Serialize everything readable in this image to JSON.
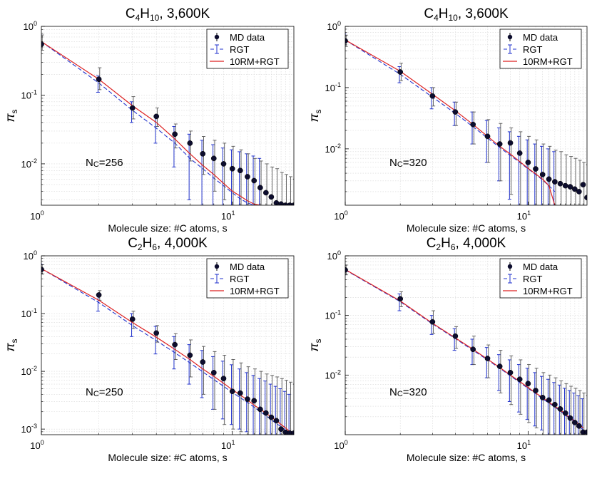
{
  "figure": {
    "xlabel": "Molecule size: #C atoms, s",
    "ylabel": "π",
    "ylabel_sub": "s",
    "legend": [
      "MD data",
      "RGT",
      "10RM+RGT"
    ],
    "colors": {
      "md": "#000000",
      "md_fill": "#0d0d2e",
      "rgt": "#2233cc",
      "rm": "#dd2222"
    }
  },
  "chart_data": [
    {
      "type": "scatter",
      "title": "C4H10, 3,600K",
      "title_parts": {
        "a": "C",
        "b": "4",
        "c": "H",
        "d": "10",
        "e": ", 3,600K"
      },
      "annotation": {
        "a": "N",
        "b": "C",
        "c": "=256"
      },
      "xlabel": "Molecule size: #C atoms, s",
      "xscale": "log",
      "yscale": "log",
      "xlim": [
        1,
        21
      ],
      "ylim": [
        0.0025,
        1
      ],
      "xticks": [
        {
          "v": 1,
          "b": "10",
          "e": "0"
        },
        {
          "v": 10,
          "b": "10",
          "e": "1"
        }
      ],
      "yticks": [
        {
          "v": 1,
          "b": "10",
          "e": "0"
        },
        {
          "v": 0.1,
          "b": "10",
          "e": "-1"
        },
        {
          "v": 0.01,
          "b": "10",
          "e": "-2"
        }
      ],
      "grid": true,
      "legend_position": "top-right",
      "series": [
        {
          "name": "MD data",
          "x": [
            1,
            2,
            3,
            4,
            5,
            6,
            7,
            8,
            9,
            10,
            11,
            12,
            13,
            14,
            15,
            16,
            17,
            18,
            19,
            20,
            21
          ],
          "y": [
            0.55,
            0.17,
            0.065,
            0.049,
            0.027,
            0.02,
            0.014,
            0.012,
            0.01,
            0.0085,
            0.008,
            0.0065,
            0.0057,
            0.0045,
            0.0038,
            0.0033,
            0.0027,
            0.0026,
            0.0025,
            0.0025,
            0.0025
          ],
          "yerr_upper": [
            0.75,
            0.25,
            0.095,
            0.065,
            0.038,
            0.03,
            0.025,
            0.022,
            0.02,
            0.018,
            0.016,
            0.014,
            0.012,
            0.011,
            0.01,
            0.009,
            0.0085,
            0.0075,
            0.007,
            0.0065,
            0.006
          ],
          "yerr_lower": [
            0.45,
            0.12,
            0.045,
            0.035,
            0.017,
            0.011,
            0.007,
            0.004,
            0.003,
            0.0025,
            0.0025,
            0.0025,
            0.0025,
            0.0025,
            0.0025,
            0.0025,
            0.0025,
            0.0025,
            0.0025,
            0.0025,
            0.0025
          ]
        },
        {
          "name": "RGT",
          "x": [
            1,
            2,
            3,
            4,
            5,
            6,
            7,
            8,
            9,
            10,
            11,
            12,
            13,
            14
          ],
          "y": [
            0.6,
            0.15,
            0.06,
            0.033,
            0.02,
            0.012,
            0.0085,
            0.0062,
            0.0048,
            0.0038,
            0.0031,
            0.0027,
            0.0025,
            0.0025
          ],
          "yerr_upper": [
            0.75,
            0.19,
            0.08,
            0.05,
            0.035,
            0.027,
            0.022,
            0.019,
            0.017,
            0.016,
            0.015,
            0.014,
            0.013,
            0.012
          ],
          "yerr_lower": [
            0.5,
            0.11,
            0.04,
            0.02,
            0.009,
            0.003,
            0.0025,
            0.0025,
            0.0025,
            0.0025,
            0.0025,
            0.0025,
            0.0025,
            0.0025
          ]
        },
        {
          "name": "10RM+RGT",
          "x": [
            1,
            2,
            3,
            4,
            5,
            6,
            7,
            8,
            9,
            10,
            11,
            12,
            13,
            14
          ],
          "y": [
            0.6,
            0.17,
            0.07,
            0.04,
            0.023,
            0.014,
            0.0095,
            0.007,
            0.0052,
            0.004,
            0.0034,
            0.0029,
            0.0026,
            0.0025
          ]
        }
      ]
    },
    {
      "type": "scatter",
      "title": "C4H10, 3,600K",
      "title_parts": {
        "a": "C",
        "b": "4",
        "c": "H",
        "d": "10",
        "e": ", 3,600K"
      },
      "annotation": {
        "a": "N",
        "b": "C",
        "c": "=320"
      },
      "xlabel": "Molecule size: #C atoms, s",
      "xscale": "log",
      "yscale": "log",
      "xlim": [
        1,
        21
      ],
      "ylim": [
        0.0012,
        1
      ],
      "xticks": [
        {
          "v": 1,
          "b": "10",
          "e": "0"
        },
        {
          "v": 10,
          "b": "10",
          "e": "1"
        }
      ],
      "yticks": [
        {
          "v": 1,
          "b": "10",
          "e": "0"
        },
        {
          "v": 0.1,
          "b": "10",
          "e": "-1"
        },
        {
          "v": 0.01,
          "b": "10",
          "e": "-2"
        }
      ],
      "grid": true,
      "legend_position": "top-right",
      "series": [
        {
          "name": "MD data",
          "x": [
            1,
            2,
            3,
            4,
            5,
            6,
            7,
            8,
            9,
            10,
            11,
            12,
            13,
            14,
            15,
            16,
            17,
            18,
            19,
            20,
            21
          ],
          "y": [
            0.58,
            0.18,
            0.073,
            0.04,
            0.025,
            0.016,
            0.012,
            0.0125,
            0.0085,
            0.006,
            0.0047,
            0.0038,
            0.0032,
            0.0029,
            0.0027,
            0.0025,
            0.0024,
            0.0022,
            0.002,
            0.0026,
            0.0016
          ],
          "yerr_upper": [
            0.72,
            0.25,
            0.1,
            0.058,
            0.04,
            0.03,
            0.026,
            0.022,
            0.019,
            0.016,
            0.014,
            0.012,
            0.011,
            0.0095,
            0.009,
            0.008,
            0.0075,
            0.007,
            0.0065,
            0.006,
            0.0055
          ],
          "yerr_lower": [
            0.47,
            0.13,
            0.05,
            0.024,
            0.012,
            0.006,
            0.003,
            0.0018,
            0.0012,
            0.0012,
            0.0012,
            0.0012,
            0.0012,
            0.0012,
            0.0012,
            0.0012,
            0.0012,
            0.0012,
            0.0012,
            0.0012,
            0.0012
          ]
        },
        {
          "name": "RGT",
          "x": [
            1,
            2,
            3,
            4,
            5,
            6,
            7,
            8,
            9,
            10,
            11,
            12,
            13,
            14
          ],
          "y": [
            0.6,
            0.165,
            0.07,
            0.038,
            0.023,
            0.015,
            0.0105,
            0.0078,
            0.006,
            0.0047,
            0.0038,
            0.0031,
            0.0025,
            0.002
          ],
          "yerr_upper": [
            0.75,
            0.22,
            0.1,
            0.058,
            0.04,
            0.029,
            0.022,
            0.019,
            0.016,
            0.014,
            0.012,
            0.011,
            0.01,
            0.009
          ],
          "yerr_lower": [
            0.5,
            0.12,
            0.045,
            0.024,
            0.012,
            0.006,
            0.003,
            0.0015,
            0.0012,
            0.0012,
            0.0012,
            0.0012,
            0.0012,
            0.0012
          ]
        },
        {
          "name": "10RM+RGT",
          "x": [
            1,
            2,
            3,
            4,
            5,
            6,
            7,
            8,
            9,
            10,
            11,
            12,
            13,
            14
          ],
          "y": [
            0.6,
            0.185,
            0.078,
            0.042,
            0.025,
            0.016,
            0.011,
            0.0082,
            0.0062,
            0.0048,
            0.0039,
            0.0032,
            0.0025,
            0.0012
          ]
        }
      ]
    },
    {
      "type": "scatter",
      "title": "C2H6, 4,000K",
      "title_parts": {
        "a": "C",
        "b": "2",
        "c": "H",
        "d": "6",
        "e": ", 4,000K"
      },
      "annotation": {
        "a": "N",
        "b": "C",
        "c": "=250"
      },
      "xlabel": "Molecule size: #C atoms, s",
      "xscale": "log",
      "yscale": "log",
      "xlim": [
        1,
        21
      ],
      "ylim": [
        0.0008,
        1
      ],
      "xticks": [
        {
          "v": 1,
          "b": "10",
          "e": "0"
        },
        {
          "v": 10,
          "b": "10",
          "e": "1"
        }
      ],
      "yticks": [
        {
          "v": 1,
          "b": "10",
          "e": "0"
        },
        {
          "v": 0.1,
          "b": "10",
          "e": "-1"
        },
        {
          "v": 0.01,
          "b": "10",
          "e": "-2"
        },
        {
          "v": 0.001,
          "b": "10",
          "e": "-3"
        }
      ],
      "grid": true,
      "legend_position": "top-right",
      "series": [
        {
          "name": "MD data",
          "x": [
            1,
            2,
            3,
            4,
            5,
            6,
            7,
            8,
            9,
            10,
            11,
            12,
            13,
            14,
            15,
            16,
            17,
            18,
            19,
            20,
            21
          ],
          "y": [
            0.58,
            0.21,
            0.08,
            0.046,
            0.029,
            0.019,
            0.0145,
            0.0095,
            0.0075,
            0.0045,
            0.0042,
            0.0033,
            0.0031,
            0.0022,
            0.0019,
            0.0016,
            0.0014,
            0.001,
            0.00088,
            0.00085,
            0.00085
          ],
          "yerr_upper": [
            0.7,
            0.25,
            0.11,
            0.062,
            0.045,
            0.035,
            0.027,
            0.022,
            0.019,
            0.016,
            0.014,
            0.012,
            0.011,
            0.01,
            0.009,
            0.0085,
            0.008,
            0.0075,
            0.007,
            0.0065,
            0.006
          ],
          "yerr_lower": [
            0.48,
            0.17,
            0.055,
            0.032,
            0.016,
            0.008,
            0.004,
            0.0022,
            0.0012,
            0.001,
            0.0009,
            0.0008,
            0.0008,
            0.0008,
            0.0008,
            0.0008,
            0.0008,
            0.0008,
            0.0008,
            0.0008,
            0.0008
          ]
        },
        {
          "name": "RGT",
          "x": [
            1,
            2,
            3,
            4,
            5,
            6,
            7,
            8,
            9,
            10,
            11,
            12,
            13,
            14,
            15,
            16,
            17,
            18,
            19,
            20
          ],
          "y": [
            0.6,
            0.155,
            0.062,
            0.034,
            0.021,
            0.014,
            0.0098,
            0.0072,
            0.0055,
            0.0043,
            0.0035,
            0.0029,
            0.0024,
            0.002,
            0.0017,
            0.00145,
            0.00125,
            0.0011,
            0.00095,
            0.00085
          ],
          "yerr_upper": [
            0.72,
            0.21,
            0.1,
            0.06,
            0.04,
            0.029,
            0.023,
            0.018,
            0.015,
            0.013,
            0.011,
            0.0095,
            0.0085,
            0.0075,
            0.0068,
            0.006,
            0.0055,
            0.005,
            0.0045,
            0.004
          ],
          "yerr_lower": [
            0.5,
            0.11,
            0.04,
            0.02,
            0.011,
            0.006,
            0.0035,
            0.0022,
            0.0015,
            0.0012,
            0.001,
            0.0009,
            0.0008,
            0.0008,
            0.0008,
            0.0008,
            0.0008,
            0.0008,
            0.0008,
            0.0008
          ]
        },
        {
          "name": "10RM+RGT",
          "x": [
            1,
            2,
            3,
            4,
            5,
            6,
            7,
            8,
            9,
            10,
            11,
            12,
            13,
            14,
            15,
            16,
            17,
            18,
            19,
            20
          ],
          "y": [
            0.6,
            0.17,
            0.07,
            0.039,
            0.024,
            0.016,
            0.011,
            0.0082,
            0.0062,
            0.0048,
            0.0039,
            0.0032,
            0.0026,
            0.0022,
            0.0019,
            0.0016,
            0.0014,
            0.0012,
            0.00105,
            0.0009
          ]
        }
      ]
    },
    {
      "type": "scatter",
      "title": "C2H6, 4,000K",
      "title_parts": {
        "a": "C",
        "b": "2",
        "c": "H",
        "d": "6",
        "e": ", 4,000K"
      },
      "annotation": {
        "a": "N",
        "b": "C",
        "c": "=320"
      },
      "xlabel": "Molecule size: #C atoms, s",
      "xscale": "log",
      "yscale": "log",
      "xlim": [
        1,
        21
      ],
      "ylim": [
        0.001,
        1
      ],
      "xticks": [
        {
          "v": 1,
          "b": "10",
          "e": "0"
        },
        {
          "v": 10,
          "b": "10",
          "e": "1"
        }
      ],
      "yticks": [
        {
          "v": 1,
          "b": "10",
          "e": "0"
        },
        {
          "v": 0.1,
          "b": "10",
          "e": "-1"
        },
        {
          "v": 0.01,
          "b": "10",
          "e": "-2"
        }
      ],
      "grid": true,
      "legend_position": "top-right",
      "series": [
        {
          "name": "MD data",
          "x": [
            1,
            2,
            3,
            4,
            5,
            6,
            7,
            8,
            9,
            10,
            11,
            12,
            13,
            14,
            15,
            16,
            17,
            18,
            19,
            20,
            21
          ],
          "y": [
            0.58,
            0.19,
            0.078,
            0.045,
            0.027,
            0.019,
            0.014,
            0.011,
            0.0085,
            0.0072,
            0.0055,
            0.0042,
            0.0038,
            0.0032,
            0.0027,
            0.0023,
            0.0019,
            0.0016,
            0.0014,
            0.0011,
            0.0011
          ],
          "yerr_upper": [
            0.7,
            0.25,
            0.12,
            0.065,
            0.045,
            0.032,
            0.026,
            0.021,
            0.018,
            0.015,
            0.013,
            0.011,
            0.01,
            0.009,
            0.008,
            0.0072,
            0.0065,
            0.006,
            0.0055,
            0.005,
            0.0045
          ],
          "yerr_lower": [
            0.48,
            0.14,
            0.05,
            0.028,
            0.015,
            0.009,
            0.005,
            0.0032,
            0.0022,
            0.0016,
            0.0013,
            0.001,
            0.001,
            0.001,
            0.001,
            0.001,
            0.001,
            0.001,
            0.001,
            0.001,
            0.001
          ]
        },
        {
          "name": "RGT",
          "x": [
            1,
            2,
            3,
            4,
            5,
            6,
            7,
            8,
            9,
            10,
            11,
            12,
            13,
            14,
            15,
            16,
            17,
            18,
            19,
            20
          ],
          "y": [
            0.58,
            0.17,
            0.072,
            0.041,
            0.026,
            0.018,
            0.013,
            0.0097,
            0.0075,
            0.006,
            0.0049,
            0.004,
            0.0034,
            0.0029,
            0.0025,
            0.0021,
            0.0019,
            0.0016,
            0.0014,
            0.0012
          ],
          "yerr_upper": [
            0.7,
            0.23,
            0.1,
            0.06,
            0.04,
            0.029,
            0.022,
            0.018,
            0.015,
            0.013,
            0.011,
            0.0095,
            0.0085,
            0.0075,
            0.0068,
            0.006,
            0.0055,
            0.005,
            0.0045,
            0.004
          ],
          "yerr_lower": [
            0.48,
            0.12,
            0.048,
            0.026,
            0.015,
            0.009,
            0.0055,
            0.0036,
            0.0024,
            0.0018,
            0.0014,
            0.0012,
            0.001,
            0.001,
            0.001,
            0.001,
            0.001,
            0.001,
            0.001,
            0.001
          ]
        },
        {
          "name": "10RM+RGT",
          "x": [
            1,
            2,
            3,
            4,
            5,
            6,
            7,
            8,
            9,
            10,
            11,
            12,
            13,
            14,
            15,
            16,
            17,
            18,
            19,
            20
          ],
          "y": [
            0.59,
            0.175,
            0.074,
            0.042,
            0.027,
            0.0185,
            0.0134,
            0.01,
            0.0078,
            0.0062,
            0.005,
            0.0042,
            0.0035,
            0.003,
            0.0026,
            0.0022,
            0.0019,
            0.0017,
            0.0015,
            0.0013
          ]
        }
      ]
    }
  ]
}
